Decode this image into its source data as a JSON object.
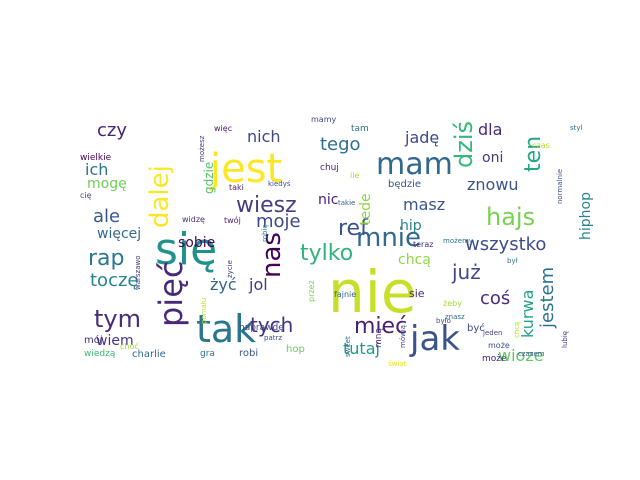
{
  "words": [
    {
      "text": "nie",
      "color": "#c8df2a",
      "weight": 10
    },
    {
      "text": "się",
      "color": "#21918c",
      "weight": 9
    },
    {
      "text": "tak",
      "color": "#2a768e",
      "weight": 8
    },
    {
      "text": "jest",
      "color": "#fde725",
      "weight": 8
    },
    {
      "text": "jak",
      "color": "#3b528b",
      "weight": 8
    },
    {
      "text": "pięć",
      "color": "#482878",
      "weight": 7
    },
    {
      "text": "mam",
      "color": "#31688e",
      "weight": 7
    },
    {
      "text": "dalej",
      "color": "#fde725",
      "weight": 6
    },
    {
      "text": "nas",
      "color": "#440154",
      "weight": 6
    },
    {
      "text": "dziś",
      "color": "#35b779",
      "weight": 6
    },
    {
      "text": "mnie",
      "color": "#31688e",
      "weight": 6
    },
    {
      "text": "hajs",
      "color": "#7ad151",
      "weight": 5
    },
    {
      "text": "rap",
      "color": "#2a788e",
      "weight": 5
    },
    {
      "text": "tym",
      "color": "#472c7a",
      "weight": 5
    },
    {
      "text": "wiesz",
      "color": "#433e85",
      "weight": 5
    },
    {
      "text": "ref",
      "color": "#3b528b",
      "weight": 5
    },
    {
      "text": "mieć",
      "color": "#482173",
      "weight": 5
    },
    {
      "text": "ten",
      "color": "#22a884",
      "weight": 5
    },
    {
      "text": "tylko",
      "color": "#2fb47c",
      "weight": 4
    },
    {
      "text": "tych",
      "color": "#46327e",
      "weight": 4
    },
    {
      "text": "już",
      "color": "#3f4788",
      "weight": 4
    },
    {
      "text": "jestem",
      "color": "#2c728e",
      "weight": 4
    },
    {
      "text": "kurwa",
      "color": "#20a386",
      "weight": 4
    },
    {
      "text": "coś",
      "color": "#472d7b",
      "weight": 4
    },
    {
      "text": "ale",
      "color": "#38588c",
      "weight": 4
    },
    {
      "text": "wszystko",
      "color": "#3d4d8a",
      "weight": 4
    },
    {
      "text": "czy",
      "color": "#482475",
      "weight": 4
    },
    {
      "text": "tego",
      "color": "#2d708e",
      "weight": 4
    },
    {
      "text": "moje",
      "color": "#3f4889",
      "weight": 4
    },
    {
      "text": "toczę",
      "color": "#25848e",
      "weight": 4
    },
    {
      "text": "żyć",
      "color": "#31668e",
      "weight": 4
    },
    {
      "text": "jol",
      "color": "#443a83",
      "weight": 4
    },
    {
      "text": "masz",
      "color": "#39568c",
      "weight": 4
    },
    {
      "text": "tutaj",
      "color": "#1f998a",
      "weight": 4
    },
    {
      "text": "wioze",
      "color": "#5ec962",
      "weight": 4
    },
    {
      "text": "hiphop",
      "color": "#26828e",
      "weight": 4
    },
    {
      "text": "znowu",
      "color": "#3b528b",
      "weight": 4
    },
    {
      "text": "nich",
      "color": "#414487",
      "weight": 4
    },
    {
      "text": "ich",
      "color": "#2c728e",
      "weight": 4
    },
    {
      "text": "jadę",
      "color": "#3e4989",
      "weight": 4
    },
    {
      "text": "dla",
      "color": "#472a7a",
      "weight": 4
    },
    {
      "text": "oni",
      "color": "#443983",
      "weight": 3
    },
    {
      "text": "nic",
      "color": "#481d6f",
      "weight": 3
    },
    {
      "text": "tede",
      "color": "#8fd744",
      "weight": 3
    },
    {
      "text": "sobie",
      "color": "#450559",
      "weight": 3
    },
    {
      "text": "mogę",
      "color": "#6ece58",
      "weight": 3
    },
    {
      "text": "więcej",
      "color": "#31688e",
      "weight": 3
    },
    {
      "text": "wiem",
      "color": "#463480",
      "weight": 3
    },
    {
      "text": "gdzie",
      "color": "#52c569",
      "weight": 3
    },
    {
      "text": "hip",
      "color": "#25838e",
      "weight": 3
    },
    {
      "text": "chcą",
      "color": "#90d743",
      "weight": 3
    },
    {
      "text": "sie",
      "color": "#482878",
      "weight": 2
    },
    {
      "text": "będzie",
      "color": "#3a548c",
      "weight": 2
    },
    {
      "text": "charlie",
      "color": "#31688e",
      "weight": 2
    },
    {
      "text": "mój",
      "color": "#463480",
      "weight": 2
    },
    {
      "text": "robi",
      "color": "#3a538b",
      "weight": 2
    },
    {
      "text": "hop",
      "color": "#6ccd5a",
      "weight": 2
    },
    {
      "text": "być",
      "color": "#3e4a89",
      "weight": 2
    },
    {
      "text": "może",
      "color": "#482374",
      "weight": 2
    },
    {
      "text": "wiedzą",
      "color": "#3fbc73",
      "weight": 2
    },
    {
      "text": "gra",
      "color": "#2c718e",
      "weight": 2
    },
    {
      "text": "naprawdę",
      "color": "#404688",
      "weight": 2
    },
    {
      "text": "chuj",
      "color": "#482475",
      "weight": 2
    },
    {
      "text": "mną",
      "color": "#46337f",
      "weight": 2
    },
    {
      "text": "tam",
      "color": "#2e6f8e",
      "weight": 2
    },
    {
      "text": "mamy",
      "color": "#3f4788",
      "weight": 2
    },
    {
      "text": "więc",
      "color": "#481467",
      "weight": 2
    },
    {
      "text": "kiedyś",
      "color": "#3c4f8a",
      "weight": 2
    },
    {
      "text": "taki",
      "color": "#482677",
      "weight": 2
    },
    {
      "text": "takie",
      "color": "#34618d",
      "weight": 2
    },
    {
      "text": "twój",
      "color": "#481a6c",
      "weight": 2
    },
    {
      "text": "widzę",
      "color": "#472e7c",
      "weight": 2
    },
    {
      "text": "wielkie",
      "color": "#440154",
      "weight": 2
    },
    {
      "text": "może",
      "color": "#3b518b",
      "weight": 2
    },
    {
      "text": "możesz",
      "color": "#443b84",
      "weight": 1
    },
    {
      "text": "cię",
      "color": "#3e4989",
      "weight": 1
    },
    {
      "text": "ile",
      "color": "#aadc32",
      "weight": 1
    },
    {
      "text": "teraz",
      "color": "#472f7d",
      "weight": 1
    },
    {
      "text": "możemy",
      "color": "#2a778e",
      "weight": 1
    },
    {
      "text": "był",
      "color": "#2a768e",
      "weight": 1
    },
    {
      "text": "normalnie",
      "color": "#3c508b",
      "weight": 1
    },
    {
      "text": "czas",
      "color": "#b5de2b",
      "weight": 1
    },
    {
      "text": "styl",
      "color": "#31678e",
      "weight": 1
    },
    {
      "text": "życie",
      "color": "#453781",
      "weight": 1
    },
    {
      "text": "robię",
      "color": "#2a788e",
      "weight": 1
    },
    {
      "text": "fajnie",
      "color": "#34618d",
      "weight": 1
    },
    {
      "text": "przez",
      "color": "#7ad151",
      "weight": 1
    },
    {
      "text": "pomału",
      "color": "#b5de2b",
      "weight": 1
    },
    {
      "text": "patrz",
      "color": "#3d4e8a",
      "weight": 1
    },
    {
      "text": "warszawo",
      "color": "#453882",
      "weight": 1
    },
    {
      "text": "choć",
      "color": "#a0da39",
      "weight": 1
    },
    {
      "text": "sweet",
      "color": "#31688e",
      "weight": 1
    },
    {
      "text": "mówią",
      "color": "#3e4a89",
      "weight": 1
    },
    {
      "text": "żeby",
      "color": "#a5db36",
      "weight": 1
    },
    {
      "text": "znasz",
      "color": "#31678e",
      "weight": 1
    },
    {
      "text": "jeden",
      "color": "#404588",
      "weight": 1
    },
    {
      "text": "było",
      "color": "#3d4d8a",
      "weight": 1
    },
    {
      "text": "lubię",
      "color": "#433e85",
      "weight": 1
    },
    {
      "text": "czasem",
      "color": "#3b528b",
      "weight": 1
    },
    {
      "text": "chcę",
      "color": "#b8de29",
      "weight": 1
    },
    {
      "text": "świat",
      "color": "#e7e419",
      "weight": 1
    }
  ]
}
